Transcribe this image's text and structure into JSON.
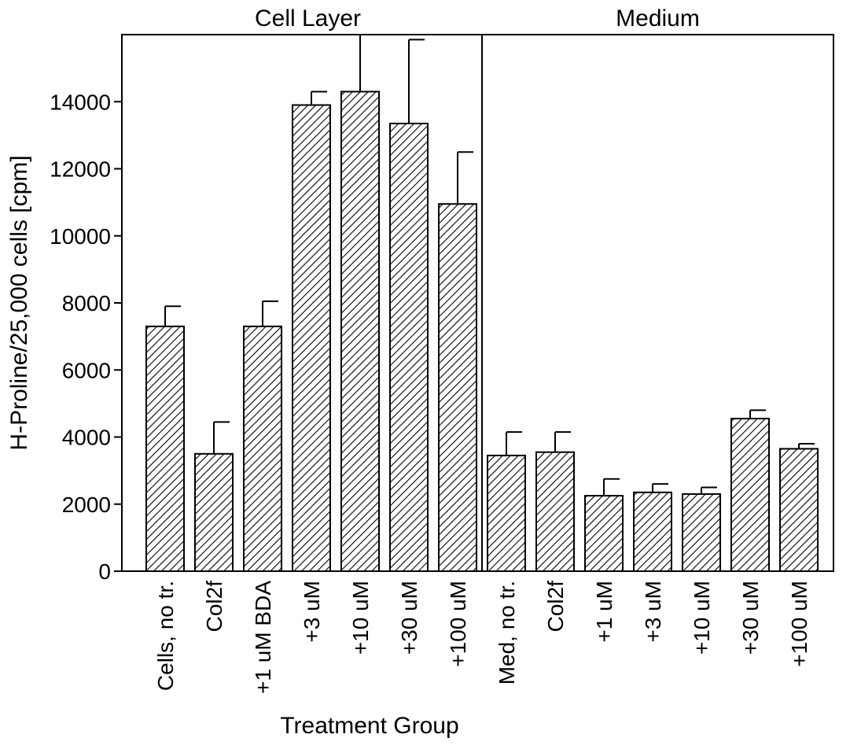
{
  "chart_data": {
    "type": "bar",
    "xlabel": "Treatment Group",
    "ylabel": "H-Proline/25,000 cells [cpm]",
    "ylim": [
      0,
      16000
    ],
    "yticks": [
      0,
      2000,
      4000,
      6000,
      8000,
      10000,
      12000,
      14000
    ],
    "ytick_labels": [
      "0",
      "2000",
      "4000",
      "6000",
      "8000",
      "10000",
      "12000",
      "14000"
    ],
    "grid": false,
    "bar_fill": "hatched",
    "colors": {
      "bar_stroke": "#000000",
      "hatch": "#000000",
      "background": "#ffffff"
    },
    "panels": [
      {
        "label": "Cell Layer",
        "categories": [
          "Cells, no tr.",
          "Col2f",
          "+1 uM BDA",
          "+3 uM",
          "+10 uM",
          "+30 uM",
          "+100 uM"
        ],
        "values": [
          7300,
          3500,
          7300,
          13900,
          14300,
          13350,
          10950
        ],
        "errors": [
          600,
          950,
          750,
          400,
          1900,
          2500,
          1550
        ]
      },
      {
        "label": "Medium",
        "categories": [
          "Med, no tr.",
          "Col2f",
          "+1 uM",
          "+3 uM",
          "+10 uM",
          "+30 uM",
          "+100 uM"
        ],
        "values": [
          3450,
          3550,
          2250,
          2350,
          2300,
          4550,
          3650
        ],
        "errors": [
          700,
          600,
          500,
          250,
          200,
          250,
          150
        ]
      }
    ]
  }
}
